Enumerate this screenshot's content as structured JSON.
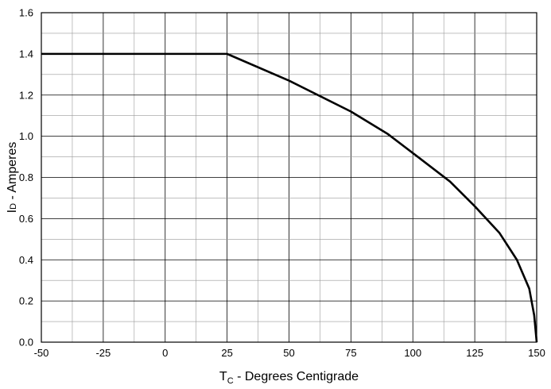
{
  "chart_data": {
    "type": "line",
    "title": "",
    "xlabel": {
      "main": "T",
      "sub": "C",
      "rest": " - Degrees Centigrade"
    },
    "ylabel": {
      "main": "I",
      "sub": "D",
      "rest": " - Amperes"
    },
    "xlim": [
      -50,
      150
    ],
    "ylim": [
      0,
      1.6
    ],
    "x_ticks": [
      -50,
      -25,
      0,
      25,
      50,
      75,
      100,
      125,
      150
    ],
    "x_tick_labels": [
      "-50",
      "-25",
      "0",
      "25",
      "50",
      "75",
      "100",
      "125",
      "150"
    ],
    "y_ticks": [
      0,
      0.2,
      0.4,
      0.6,
      0.8,
      1.0,
      1.2,
      1.4,
      1.6
    ],
    "y_tick_labels": [
      "0.0",
      "0.2",
      "0.4",
      "0.6",
      "0.8",
      "1.0",
      "1.2",
      "1.4",
      "1.6"
    ],
    "x_minor_step": 12.5,
    "y_minor_step": 0.1,
    "grid": true,
    "series": [
      {
        "color": "#000000",
        "x": [
          -50,
          25,
          50,
          75,
          90,
          102,
          115,
          125,
          135,
          142,
          147,
          149,
          150
        ],
        "y": [
          1.4,
          1.4,
          1.27,
          1.12,
          1.01,
          0.9,
          0.78,
          0.66,
          0.53,
          0.4,
          0.26,
          0.13,
          0.0
        ]
      }
    ]
  }
}
